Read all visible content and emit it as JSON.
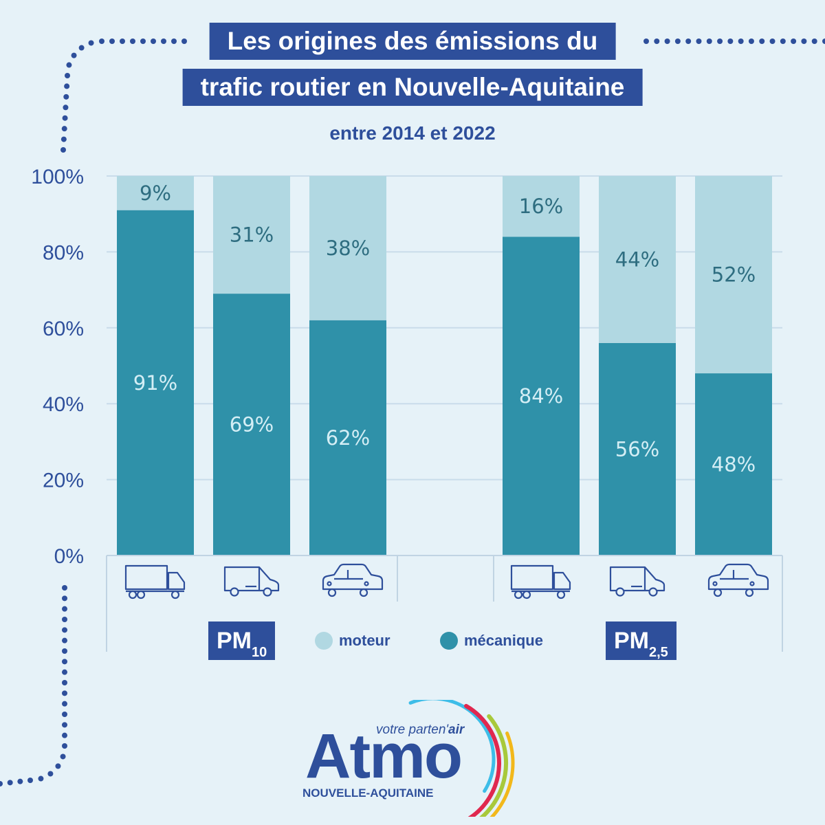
{
  "header": {
    "title_line1": "Les origines des émissions du",
    "title_line2": "trafic routier en Nouvelle-Aquitaine",
    "subtitle": "entre 2014 et 2022"
  },
  "legend": {
    "moteur": "moteur",
    "mecanique": "mécanique",
    "pm10_base": "PM",
    "pm10_sub": "10",
    "pm25_base": "PM",
    "pm25_sub": "2,5"
  },
  "colors": {
    "moteur": "#b1d8e2",
    "mecanique": "#2f91a9",
    "brand": "#2e4f9b",
    "background": "#e6f2f8",
    "moteur_label": "#2e6d80",
    "mecanique_label": "#d4eef5"
  },
  "chart_data": {
    "type": "bar",
    "stacked": true,
    "groups": [
      {
        "name": "PM10",
        "categories": [
          "truck-icon",
          "van-icon",
          "car-icon"
        ]
      },
      {
        "name": "PM2,5",
        "categories": [
          "truck-icon",
          "van-icon",
          "car-icon"
        ]
      }
    ],
    "series": [
      {
        "name": "mécanique",
        "values": [
          91,
          69,
          62,
          84,
          56,
          48
        ]
      },
      {
        "name": "moteur",
        "values": [
          9,
          31,
          38,
          16,
          44,
          52
        ]
      }
    ],
    "ylim": [
      0,
      100
    ],
    "yticks": [
      "0%",
      "20%",
      "40%",
      "60%",
      "80%",
      "100%"
    ],
    "grid": true,
    "legend_position": "bottom"
  },
  "logo": {
    "tagline_prefix": "votre parten'",
    "tagline_suffix": "air",
    "wordmark": "Atmo",
    "region": "NOUVELLE-AQUITAINE",
    "arc_colors": [
      "#3dbde8",
      "#e0284f",
      "#a8c93b",
      "#f2b81b"
    ]
  }
}
